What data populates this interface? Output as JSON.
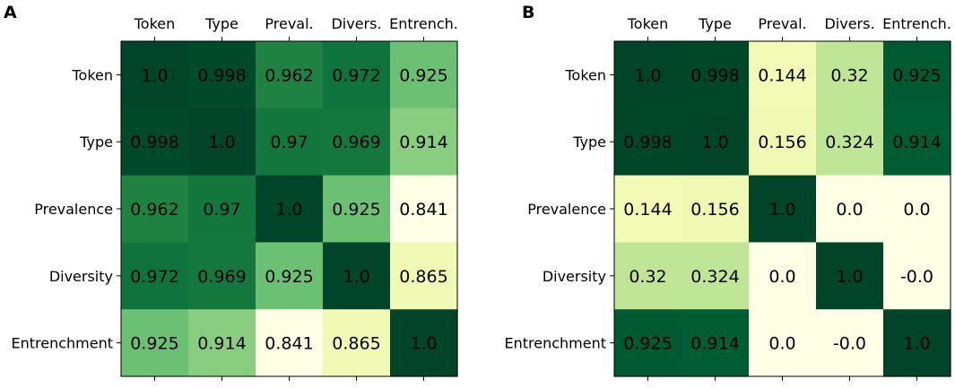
{
  "chart_data": [
    {
      "type": "heatmap",
      "panel_label": "A",
      "title": "",
      "colormap": "YlGn",
      "color_range": [
        0.841,
        1.0
      ],
      "x_categories": [
        "Token",
        "Type",
        "Preval.",
        "Divers.",
        "Entrench."
      ],
      "y_categories": [
        "Token",
        "Type",
        "Prevalence",
        "Diversity",
        "Entrenchment"
      ],
      "values": [
        [
          1.0,
          0.998,
          0.962,
          0.972,
          0.925
        ],
        [
          0.998,
          1.0,
          0.97,
          0.969,
          0.914
        ],
        [
          0.962,
          0.97,
          1.0,
          0.925,
          0.841
        ],
        [
          0.972,
          0.969,
          0.925,
          1.0,
          0.865
        ],
        [
          0.925,
          0.914,
          0.841,
          0.865,
          1.0
        ]
      ],
      "cell_labels": [
        [
          "1.0",
          "0.998",
          "0.962",
          "0.972",
          "0.925"
        ],
        [
          "0.998",
          "1.0",
          "0.97",
          "0.969",
          "0.914"
        ],
        [
          "0.962",
          "0.97",
          "1.0",
          "0.925",
          "0.841"
        ],
        [
          "0.972",
          "0.969",
          "0.925",
          "1.0",
          "0.865"
        ],
        [
          "0.925",
          "0.914",
          "0.841",
          "0.865",
          "1.0"
        ]
      ]
    },
    {
      "type": "heatmap",
      "panel_label": "B",
      "title": "",
      "colormap": "YlGn",
      "color_range": [
        0.0,
        1.0
      ],
      "x_categories": [
        "Token",
        "Type",
        "Preval.",
        "Divers.",
        "Entrench."
      ],
      "y_categories": [
        "Token",
        "Type",
        "Prevalence",
        "Diversity",
        "Entrenchment"
      ],
      "values": [
        [
          1.0,
          0.998,
          0.144,
          0.32,
          0.925
        ],
        [
          0.998,
          1.0,
          0.156,
          0.324,
          0.914
        ],
        [
          0.144,
          0.156,
          1.0,
          0.0,
          0.0
        ],
        [
          0.32,
          0.324,
          0.0,
          1.0,
          -0.0
        ],
        [
          0.925,
          0.914,
          0.0,
          -0.0,
          1.0
        ]
      ],
      "cell_labels": [
        [
          "1.0",
          "0.998",
          "0.144",
          "0.32",
          "0.925"
        ],
        [
          "0.998",
          "1.0",
          "0.156",
          "0.324",
          "0.914"
        ],
        [
          "0.144",
          "0.156",
          "1.0",
          "0.0",
          "0.0"
        ],
        [
          "0.32",
          "0.324",
          "0.0",
          "1.0",
          "-0.0"
        ],
        [
          "0.925",
          "0.914",
          "0.0",
          "-0.0",
          "1.0"
        ]
      ]
    }
  ]
}
